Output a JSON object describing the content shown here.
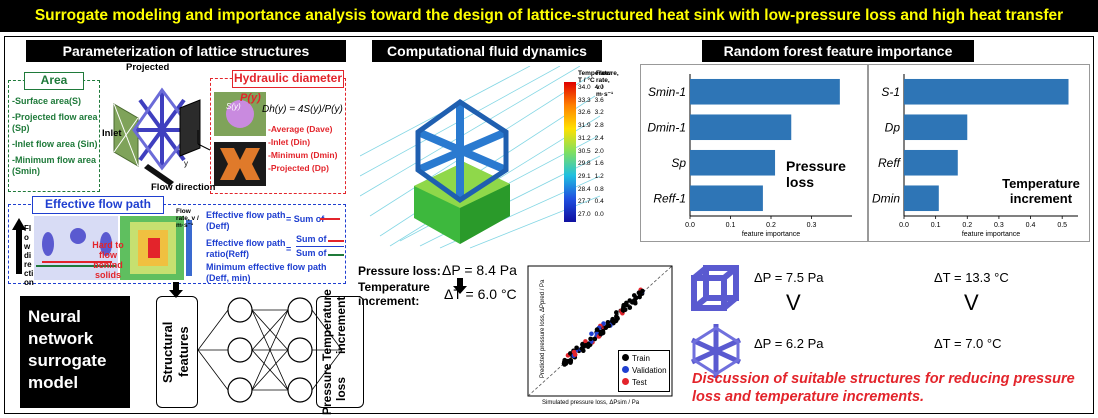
{
  "banner": {
    "title": "Surrogate modeling and importance analysis toward the design of lattice-structured heat sink with low-pressure loss and high heat transfer"
  },
  "param": {
    "title": "Parameterization of lattice structures",
    "area": {
      "label": "Area",
      "items": [
        "-Surface area(S)",
        "-Projected flow area (Sp)",
        "-Inlet flow area (Sin)",
        "-Minimum flow area (Smin)"
      ]
    },
    "projected": "Projected",
    "inlet": "Inlet",
    "flow_direction": "Flow direction",
    "hydraulic": {
      "label": "Hydraulic diameter",
      "py": "P(y)",
      "sy": "S(y)",
      "formula": "Dh(y) = 4S(y)/P(y)",
      "items": [
        "-Average (Dave)",
        "-Inlet (Din)",
        "-Minimum (Dmin)",
        "-Projected (Dp)"
      ]
    }
  },
  "path": {
    "label": "Effective flow path",
    "flow_dir": "Flow direction",
    "hard": "Hard to flow behind solids",
    "colorbar_title": "Flow rate, v / m·s⁻¹",
    "eff_path": "Effective flow path (Deff)",
    "eq_sum": "= Sum of",
    "eff_ratio": "Effective flow path ratio(Reff)",
    "ratio_eq": "=",
    "sum_of": "Sum of",
    "min_path": "Minimum effective flow path (Deff, min)"
  },
  "cfd": {
    "title": "Computational fluid dynamics",
    "colorbar_title": "Temperature, T / °C",
    "colorbar_title2": "Flow rate, v / m·s⁻¹",
    "temp_ticks": [
      "34.0",
      "33.3",
      "32.6",
      "31.9",
      "31.2",
      "30.5",
      "29.8",
      "29.1",
      "28.4",
      "27.7",
      "27.0"
    ],
    "flow_ticks": [
      "4.0",
      "3.6",
      "3.2",
      "2.8",
      "2.4",
      "2.0",
      "1.6",
      "1.2",
      "0.8",
      "0.4",
      "0.0"
    ],
    "pressure_label": "Pressure loss:",
    "pressure_value": "ΔP = 8.4 Pa",
    "temp_label": "Temperature increment:",
    "temp_value": "ΔT = 6.0 °C"
  },
  "rf": {
    "title": "Random forest feature importance",
    "xlabel": "feature importance",
    "left_label": "Pressure loss",
    "right_label": "Temperature increment"
  },
  "nn": {
    "label": "Neural network surrogate model",
    "input": "Structural features",
    "output1": "Pressure loss",
    "output2": "Temperature increment"
  },
  "scatter": {
    "xlabel": "Simulated pressure loss, ΔPsim / Pa",
    "ylabel": "Predicted pressure loss, ΔPpred / Pa",
    "legend": [
      "Train",
      "Validation",
      "Test"
    ]
  },
  "compare": {
    "p1": "ΔP = 7.5 Pa",
    "t1": "ΔT = 13.3 °C",
    "p2": "ΔP = 6.2 Pa",
    "t2": "ΔT = 7.0 °C",
    "v": "V",
    "discussion": "Discussion of suitable structures for reducing pressure loss and temperature increments."
  },
  "chart_data": [
    {
      "type": "bar",
      "orientation": "horizontal",
      "categories": [
        "Smin-1",
        "Dmin-1",
        "Sp",
        "Reff-1"
      ],
      "values": [
        0.37,
        0.25,
        0.21,
        0.18
      ],
      "xlabel": "feature importance",
      "xlim": [
        0.0,
        0.4
      ],
      "xticks": [
        "0.0",
        "0.1",
        "0.2",
        "0.3"
      ],
      "annotation": "Pressure loss",
      "color": "#2e75b6"
    },
    {
      "type": "bar",
      "orientation": "horizontal",
      "categories": [
        "S-1",
        "Dp",
        "Reff",
        "Dmin"
      ],
      "values": [
        0.52,
        0.2,
        0.17,
        0.11
      ],
      "xlabel": "feature importance",
      "xlim": [
        0.0,
        0.55
      ],
      "xticks": [
        "0.0",
        "0.1",
        "0.2",
        "0.3",
        "0.4",
        "0.5"
      ],
      "annotation": "Temperature increment",
      "color": "#2e75b6"
    }
  ]
}
